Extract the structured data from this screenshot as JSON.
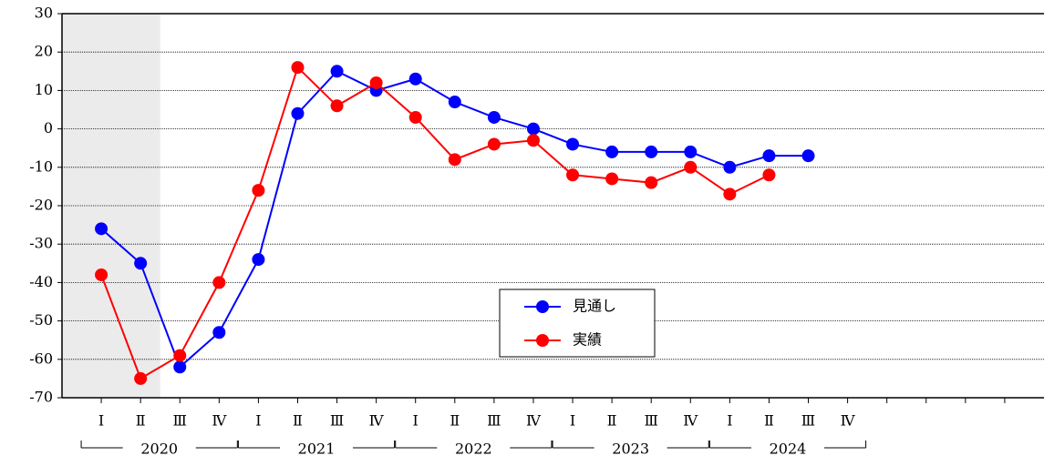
{
  "chart_data": {
    "type": "line",
    "categories": [
      "Ⅰ",
      "Ⅱ",
      "Ⅲ",
      "Ⅳ",
      "Ⅰ",
      "Ⅱ",
      "Ⅲ",
      "Ⅳ",
      "Ⅰ",
      "Ⅱ",
      "Ⅲ",
      "Ⅳ",
      "Ⅰ",
      "Ⅱ",
      "Ⅲ",
      "Ⅳ",
      "Ⅰ",
      "Ⅱ",
      "Ⅲ",
      "Ⅳ",
      null,
      null,
      null,
      null
    ],
    "years": [
      "2020",
      "2021",
      "2022",
      "2023",
      "2024"
    ],
    "series": [
      {
        "name": "見通し",
        "color": "#0000ff",
        "values": [
          -26,
          -35,
          -62,
          -53,
          -34,
          4,
          15,
          10,
          13,
          7,
          3,
          0,
          -4,
          -6,
          -6,
          -6,
          -10,
          -7,
          -7,
          null,
          null,
          null,
          null,
          null
        ]
      },
      {
        "name": "実績",
        "color": "#ff0000",
        "values": [
          -38,
          -65,
          -59,
          -40,
          -16,
          16,
          6,
          12,
          3,
          -8,
          -4,
          -3,
          -12,
          -13,
          -14,
          -10,
          -17,
          -12,
          null,
          null,
          null,
          null,
          null,
          null
        ]
      }
    ],
    "ylim": [
      -70,
      30
    ],
    "yticks": [
      -70,
      -60,
      -50,
      -40,
      -30,
      -20,
      -10,
      0,
      10,
      20,
      30
    ],
    "grid": true,
    "shaded_categories": [
      0,
      1
    ],
    "shade_color": "#ebebeb"
  }
}
